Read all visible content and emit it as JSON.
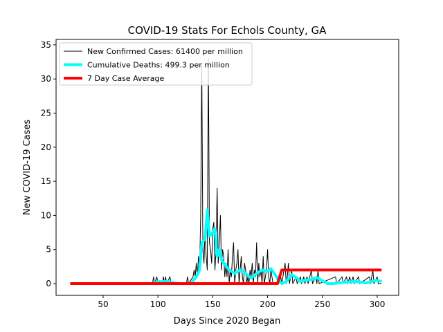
{
  "chart_data": {
    "type": "line",
    "title": "COVID-19 Stats For Echols County, GA",
    "x_label": "Days Since 2020 Began",
    "y_label": "New COVID-19 Cases",
    "xlim": [
      7.1,
      319.6
    ],
    "ylim": [
      -1.72,
      35.8
    ],
    "xticks": [
      50,
      100,
      150,
      200,
      250,
      300
    ],
    "yticks": [
      0,
      5,
      10,
      15,
      20,
      25,
      30,
      35
    ],
    "legend": "upper left",
    "series": [
      {
        "name": "New Confirmed Cases: 61400 per million",
        "color": "#000000",
        "width": 1,
        "x": [
          95,
          96,
          97,
          99,
          100,
          104,
          105,
          106,
          107,
          108,
          111,
          112,
          126,
          127,
          128,
          132,
          133,
          134,
          135,
          136,
          137,
          138,
          139,
          140,
          141,
          142,
          143,
          144,
          145,
          146,
          147,
          148,
          149,
          150,
          151,
          152,
          153,
          154,
          155,
          156,
          157,
          158,
          159,
          160,
          161,
          162,
          163,
          164,
          165,
          166,
          167,
          168,
          169,
          170,
          171,
          172,
          173,
          174,
          175,
          176,
          177,
          178,
          179,
          180,
          181,
          182,
          183,
          184,
          185,
          186,
          187,
          188,
          189,
          190,
          191,
          192,
          193,
          194,
          195,
          196,
          197,
          198,
          199,
          200,
          201,
          202,
          203,
          204,
          205,
          210,
          212,
          213,
          216,
          217,
          218,
          219,
          220,
          222,
          223,
          226,
          227,
          230,
          231,
          233,
          234,
          236,
          237,
          240,
          241,
          244,
          245,
          246,
          247,
          262,
          263,
          268,
          269,
          272,
          273,
          275,
          276,
          278,
          279,
          283,
          284,
          293,
          294,
          296,
          297,
          300,
          301,
          304
        ],
        "values": [
          0,
          1,
          0,
          1,
          0,
          0,
          1,
          0,
          1,
          0,
          1,
          0,
          0,
          1,
          0,
          1,
          2,
          1,
          3,
          1,
          4,
          2,
          10,
          32,
          5,
          3,
          8,
          4,
          2,
          33,
          6,
          5,
          3,
          8,
          9,
          2,
          5,
          14,
          3,
          6,
          10,
          2,
          5,
          4,
          1,
          3,
          1,
          5,
          0,
          2,
          1,
          4,
          6,
          0,
          2,
          3,
          5,
          0,
          2,
          4,
          1,
          0,
          3,
          2,
          0,
          1,
          0,
          2,
          1,
          3,
          0,
          2,
          1,
          6,
          0,
          3,
          1,
          2,
          0,
          4,
          0,
          1,
          2,
          5,
          1,
          0,
          2,
          1,
          0,
          0,
          1,
          0,
          3,
          0,
          1,
          3,
          0,
          2,
          0,
          1,
          0,
          1,
          0,
          1,
          0,
          1,
          0,
          2,
          0,
          1,
          0,
          2,
          0,
          1,
          0,
          1,
          0,
          1,
          0,
          1,
          0,
          1,
          0,
          1,
          0,
          1,
          0,
          2,
          0,
          1,
          0,
          0
        ]
      },
      {
        "name": "Cumulative Deaths: 499.3 per million",
        "color": "#00ffff",
        "width": 4,
        "x": [
          95,
          100,
          110,
          115,
          120,
          130,
          135,
          138,
          140,
          143,
          145,
          147,
          150,
          152,
          154,
          156,
          158,
          160,
          165,
          170,
          175,
          180,
          185,
          190,
          195,
          200,
          203,
          207,
          210,
          213,
          217,
          222,
          227,
          230,
          235,
          240,
          245,
          250,
          255,
          260,
          270,
          280,
          290,
          295,
          300,
          304
        ],
        "values": [
          0,
          0.3,
          0.3,
          0.1,
          0,
          0,
          1,
          2,
          6,
          6.5,
          10.8,
          7,
          7.5,
          8,
          4,
          5,
          3.5,
          3,
          2,
          1.5,
          2,
          1.5,
          0.8,
          1.5,
          2,
          1.8,
          2.2,
          1.3,
          0.5,
          0,
          0.3,
          1.3,
          0.8,
          0.3,
          0.5,
          0.6,
          0.9,
          0.4,
          0,
          0,
          0.2,
          0.3,
          0.1,
          0.3,
          0.5,
          0.3
        ]
      },
      {
        "name": "7 Day Case Average",
        "color": "#ff0000",
        "width": 4,
        "x": [
          20,
          209,
          213,
          304
        ],
        "values": [
          0,
          0,
          2,
          2
        ]
      }
    ]
  }
}
